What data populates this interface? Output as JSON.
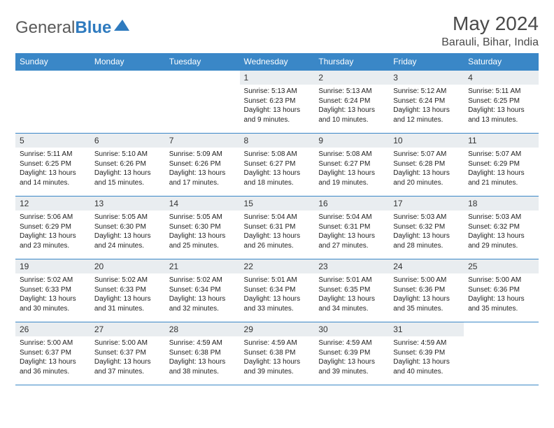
{
  "logo": {
    "text1": "General",
    "text2": "Blue"
  },
  "title": "May 2024",
  "location": "Barauli, Bihar, India",
  "colors": {
    "header_bg": "#3a87c7",
    "header_text": "#ffffff",
    "daynum_bg": "#e9edf0",
    "border": "#3a87c7",
    "logo_gray": "#5a5a5a",
    "logo_blue": "#2f7bbf"
  },
  "weekdays": [
    "Sunday",
    "Monday",
    "Tuesday",
    "Wednesday",
    "Thursday",
    "Friday",
    "Saturday"
  ],
  "weeks": [
    [
      null,
      null,
      null,
      {
        "d": "1",
        "sr": "Sunrise: 5:13 AM",
        "ss": "Sunset: 6:23 PM",
        "dl1": "Daylight: 13 hours",
        "dl2": "and 9 minutes."
      },
      {
        "d": "2",
        "sr": "Sunrise: 5:13 AM",
        "ss": "Sunset: 6:24 PM",
        "dl1": "Daylight: 13 hours",
        "dl2": "and 10 minutes."
      },
      {
        "d": "3",
        "sr": "Sunrise: 5:12 AM",
        "ss": "Sunset: 6:24 PM",
        "dl1": "Daylight: 13 hours",
        "dl2": "and 12 minutes."
      },
      {
        "d": "4",
        "sr": "Sunrise: 5:11 AM",
        "ss": "Sunset: 6:25 PM",
        "dl1": "Daylight: 13 hours",
        "dl2": "and 13 minutes."
      }
    ],
    [
      {
        "d": "5",
        "sr": "Sunrise: 5:11 AM",
        "ss": "Sunset: 6:25 PM",
        "dl1": "Daylight: 13 hours",
        "dl2": "and 14 minutes."
      },
      {
        "d": "6",
        "sr": "Sunrise: 5:10 AM",
        "ss": "Sunset: 6:26 PM",
        "dl1": "Daylight: 13 hours",
        "dl2": "and 15 minutes."
      },
      {
        "d": "7",
        "sr": "Sunrise: 5:09 AM",
        "ss": "Sunset: 6:26 PM",
        "dl1": "Daylight: 13 hours",
        "dl2": "and 17 minutes."
      },
      {
        "d": "8",
        "sr": "Sunrise: 5:08 AM",
        "ss": "Sunset: 6:27 PM",
        "dl1": "Daylight: 13 hours",
        "dl2": "and 18 minutes."
      },
      {
        "d": "9",
        "sr": "Sunrise: 5:08 AM",
        "ss": "Sunset: 6:27 PM",
        "dl1": "Daylight: 13 hours",
        "dl2": "and 19 minutes."
      },
      {
        "d": "10",
        "sr": "Sunrise: 5:07 AM",
        "ss": "Sunset: 6:28 PM",
        "dl1": "Daylight: 13 hours",
        "dl2": "and 20 minutes."
      },
      {
        "d": "11",
        "sr": "Sunrise: 5:07 AM",
        "ss": "Sunset: 6:29 PM",
        "dl1": "Daylight: 13 hours",
        "dl2": "and 21 minutes."
      }
    ],
    [
      {
        "d": "12",
        "sr": "Sunrise: 5:06 AM",
        "ss": "Sunset: 6:29 PM",
        "dl1": "Daylight: 13 hours",
        "dl2": "and 23 minutes."
      },
      {
        "d": "13",
        "sr": "Sunrise: 5:05 AM",
        "ss": "Sunset: 6:30 PM",
        "dl1": "Daylight: 13 hours",
        "dl2": "and 24 minutes."
      },
      {
        "d": "14",
        "sr": "Sunrise: 5:05 AM",
        "ss": "Sunset: 6:30 PM",
        "dl1": "Daylight: 13 hours",
        "dl2": "and 25 minutes."
      },
      {
        "d": "15",
        "sr": "Sunrise: 5:04 AM",
        "ss": "Sunset: 6:31 PM",
        "dl1": "Daylight: 13 hours",
        "dl2": "and 26 minutes."
      },
      {
        "d": "16",
        "sr": "Sunrise: 5:04 AM",
        "ss": "Sunset: 6:31 PM",
        "dl1": "Daylight: 13 hours",
        "dl2": "and 27 minutes."
      },
      {
        "d": "17",
        "sr": "Sunrise: 5:03 AM",
        "ss": "Sunset: 6:32 PM",
        "dl1": "Daylight: 13 hours",
        "dl2": "and 28 minutes."
      },
      {
        "d": "18",
        "sr": "Sunrise: 5:03 AM",
        "ss": "Sunset: 6:32 PM",
        "dl1": "Daylight: 13 hours",
        "dl2": "and 29 minutes."
      }
    ],
    [
      {
        "d": "19",
        "sr": "Sunrise: 5:02 AM",
        "ss": "Sunset: 6:33 PM",
        "dl1": "Daylight: 13 hours",
        "dl2": "and 30 minutes."
      },
      {
        "d": "20",
        "sr": "Sunrise: 5:02 AM",
        "ss": "Sunset: 6:33 PM",
        "dl1": "Daylight: 13 hours",
        "dl2": "and 31 minutes."
      },
      {
        "d": "21",
        "sr": "Sunrise: 5:02 AM",
        "ss": "Sunset: 6:34 PM",
        "dl1": "Daylight: 13 hours",
        "dl2": "and 32 minutes."
      },
      {
        "d": "22",
        "sr": "Sunrise: 5:01 AM",
        "ss": "Sunset: 6:34 PM",
        "dl1": "Daylight: 13 hours",
        "dl2": "and 33 minutes."
      },
      {
        "d": "23",
        "sr": "Sunrise: 5:01 AM",
        "ss": "Sunset: 6:35 PM",
        "dl1": "Daylight: 13 hours",
        "dl2": "and 34 minutes."
      },
      {
        "d": "24",
        "sr": "Sunrise: 5:00 AM",
        "ss": "Sunset: 6:36 PM",
        "dl1": "Daylight: 13 hours",
        "dl2": "and 35 minutes."
      },
      {
        "d": "25",
        "sr": "Sunrise: 5:00 AM",
        "ss": "Sunset: 6:36 PM",
        "dl1": "Daylight: 13 hours",
        "dl2": "and 35 minutes."
      }
    ],
    [
      {
        "d": "26",
        "sr": "Sunrise: 5:00 AM",
        "ss": "Sunset: 6:37 PM",
        "dl1": "Daylight: 13 hours",
        "dl2": "and 36 minutes."
      },
      {
        "d": "27",
        "sr": "Sunrise: 5:00 AM",
        "ss": "Sunset: 6:37 PM",
        "dl1": "Daylight: 13 hours",
        "dl2": "and 37 minutes."
      },
      {
        "d": "28",
        "sr": "Sunrise: 4:59 AM",
        "ss": "Sunset: 6:38 PM",
        "dl1": "Daylight: 13 hours",
        "dl2": "and 38 minutes."
      },
      {
        "d": "29",
        "sr": "Sunrise: 4:59 AM",
        "ss": "Sunset: 6:38 PM",
        "dl1": "Daylight: 13 hours",
        "dl2": "and 39 minutes."
      },
      {
        "d": "30",
        "sr": "Sunrise: 4:59 AM",
        "ss": "Sunset: 6:39 PM",
        "dl1": "Daylight: 13 hours",
        "dl2": "and 39 minutes."
      },
      {
        "d": "31",
        "sr": "Sunrise: 4:59 AM",
        "ss": "Sunset: 6:39 PM",
        "dl1": "Daylight: 13 hours",
        "dl2": "and 40 minutes."
      },
      null
    ]
  ]
}
